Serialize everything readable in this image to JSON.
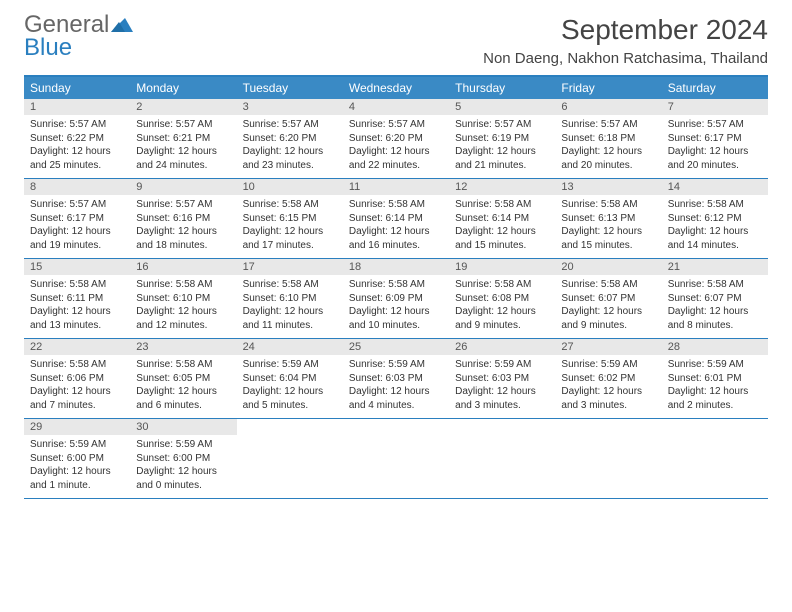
{
  "brand": {
    "part1": "General",
    "part2": "Blue"
  },
  "title": "September 2024",
  "location": "Non Daeng, Nakhon Ratchasima, Thailand",
  "colors": {
    "header_bar": "#3a8ac5",
    "accent_border": "#2a7fbf",
    "day_num_bg": "#e8e8e8",
    "text": "#333333",
    "logo_gray": "#666666",
    "logo_blue": "#2a7fbf"
  },
  "typography": {
    "title_fontsize": 28,
    "location_fontsize": 15,
    "dow_fontsize": 12,
    "daynum_fontsize": 11,
    "body_fontsize": 10
  },
  "days_of_week": [
    "Sunday",
    "Monday",
    "Tuesday",
    "Wednesday",
    "Thursday",
    "Friday",
    "Saturday"
  ],
  "weeks": [
    [
      {
        "n": "1",
        "sunrise": "Sunrise: 5:57 AM",
        "sunset": "Sunset: 6:22 PM",
        "dl1": "Daylight: 12 hours",
        "dl2": "and 25 minutes."
      },
      {
        "n": "2",
        "sunrise": "Sunrise: 5:57 AM",
        "sunset": "Sunset: 6:21 PM",
        "dl1": "Daylight: 12 hours",
        "dl2": "and 24 minutes."
      },
      {
        "n": "3",
        "sunrise": "Sunrise: 5:57 AM",
        "sunset": "Sunset: 6:20 PM",
        "dl1": "Daylight: 12 hours",
        "dl2": "and 23 minutes."
      },
      {
        "n": "4",
        "sunrise": "Sunrise: 5:57 AM",
        "sunset": "Sunset: 6:20 PM",
        "dl1": "Daylight: 12 hours",
        "dl2": "and 22 minutes."
      },
      {
        "n": "5",
        "sunrise": "Sunrise: 5:57 AM",
        "sunset": "Sunset: 6:19 PM",
        "dl1": "Daylight: 12 hours",
        "dl2": "and 21 minutes."
      },
      {
        "n": "6",
        "sunrise": "Sunrise: 5:57 AM",
        "sunset": "Sunset: 6:18 PM",
        "dl1": "Daylight: 12 hours",
        "dl2": "and 20 minutes."
      },
      {
        "n": "7",
        "sunrise": "Sunrise: 5:57 AM",
        "sunset": "Sunset: 6:17 PM",
        "dl1": "Daylight: 12 hours",
        "dl2": "and 20 minutes."
      }
    ],
    [
      {
        "n": "8",
        "sunrise": "Sunrise: 5:57 AM",
        "sunset": "Sunset: 6:17 PM",
        "dl1": "Daylight: 12 hours",
        "dl2": "and 19 minutes."
      },
      {
        "n": "9",
        "sunrise": "Sunrise: 5:57 AM",
        "sunset": "Sunset: 6:16 PM",
        "dl1": "Daylight: 12 hours",
        "dl2": "and 18 minutes."
      },
      {
        "n": "10",
        "sunrise": "Sunrise: 5:58 AM",
        "sunset": "Sunset: 6:15 PM",
        "dl1": "Daylight: 12 hours",
        "dl2": "and 17 minutes."
      },
      {
        "n": "11",
        "sunrise": "Sunrise: 5:58 AM",
        "sunset": "Sunset: 6:14 PM",
        "dl1": "Daylight: 12 hours",
        "dl2": "and 16 minutes."
      },
      {
        "n": "12",
        "sunrise": "Sunrise: 5:58 AM",
        "sunset": "Sunset: 6:14 PM",
        "dl1": "Daylight: 12 hours",
        "dl2": "and 15 minutes."
      },
      {
        "n": "13",
        "sunrise": "Sunrise: 5:58 AM",
        "sunset": "Sunset: 6:13 PM",
        "dl1": "Daylight: 12 hours",
        "dl2": "and 15 minutes."
      },
      {
        "n": "14",
        "sunrise": "Sunrise: 5:58 AM",
        "sunset": "Sunset: 6:12 PM",
        "dl1": "Daylight: 12 hours",
        "dl2": "and 14 minutes."
      }
    ],
    [
      {
        "n": "15",
        "sunrise": "Sunrise: 5:58 AM",
        "sunset": "Sunset: 6:11 PM",
        "dl1": "Daylight: 12 hours",
        "dl2": "and 13 minutes."
      },
      {
        "n": "16",
        "sunrise": "Sunrise: 5:58 AM",
        "sunset": "Sunset: 6:10 PM",
        "dl1": "Daylight: 12 hours",
        "dl2": "and 12 minutes."
      },
      {
        "n": "17",
        "sunrise": "Sunrise: 5:58 AM",
        "sunset": "Sunset: 6:10 PM",
        "dl1": "Daylight: 12 hours",
        "dl2": "and 11 minutes."
      },
      {
        "n": "18",
        "sunrise": "Sunrise: 5:58 AM",
        "sunset": "Sunset: 6:09 PM",
        "dl1": "Daylight: 12 hours",
        "dl2": "and 10 minutes."
      },
      {
        "n": "19",
        "sunrise": "Sunrise: 5:58 AM",
        "sunset": "Sunset: 6:08 PM",
        "dl1": "Daylight: 12 hours",
        "dl2": "and 9 minutes."
      },
      {
        "n": "20",
        "sunrise": "Sunrise: 5:58 AM",
        "sunset": "Sunset: 6:07 PM",
        "dl1": "Daylight: 12 hours",
        "dl2": "and 9 minutes."
      },
      {
        "n": "21",
        "sunrise": "Sunrise: 5:58 AM",
        "sunset": "Sunset: 6:07 PM",
        "dl1": "Daylight: 12 hours",
        "dl2": "and 8 minutes."
      }
    ],
    [
      {
        "n": "22",
        "sunrise": "Sunrise: 5:58 AM",
        "sunset": "Sunset: 6:06 PM",
        "dl1": "Daylight: 12 hours",
        "dl2": "and 7 minutes."
      },
      {
        "n": "23",
        "sunrise": "Sunrise: 5:58 AM",
        "sunset": "Sunset: 6:05 PM",
        "dl1": "Daylight: 12 hours",
        "dl2": "and 6 minutes."
      },
      {
        "n": "24",
        "sunrise": "Sunrise: 5:59 AM",
        "sunset": "Sunset: 6:04 PM",
        "dl1": "Daylight: 12 hours",
        "dl2": "and 5 minutes."
      },
      {
        "n": "25",
        "sunrise": "Sunrise: 5:59 AM",
        "sunset": "Sunset: 6:03 PM",
        "dl1": "Daylight: 12 hours",
        "dl2": "and 4 minutes."
      },
      {
        "n": "26",
        "sunrise": "Sunrise: 5:59 AM",
        "sunset": "Sunset: 6:03 PM",
        "dl1": "Daylight: 12 hours",
        "dl2": "and 3 minutes."
      },
      {
        "n": "27",
        "sunrise": "Sunrise: 5:59 AM",
        "sunset": "Sunset: 6:02 PM",
        "dl1": "Daylight: 12 hours",
        "dl2": "and 3 minutes."
      },
      {
        "n": "28",
        "sunrise": "Sunrise: 5:59 AM",
        "sunset": "Sunset: 6:01 PM",
        "dl1": "Daylight: 12 hours",
        "dl2": "and 2 minutes."
      }
    ],
    [
      {
        "n": "29",
        "sunrise": "Sunrise: 5:59 AM",
        "sunset": "Sunset: 6:00 PM",
        "dl1": "Daylight: 12 hours",
        "dl2": "and 1 minute."
      },
      {
        "n": "30",
        "sunrise": "Sunrise: 5:59 AM",
        "sunset": "Sunset: 6:00 PM",
        "dl1": "Daylight: 12 hours",
        "dl2": "and 0 minutes."
      },
      {
        "empty": true
      },
      {
        "empty": true
      },
      {
        "empty": true
      },
      {
        "empty": true
      },
      {
        "empty": true
      }
    ]
  ]
}
